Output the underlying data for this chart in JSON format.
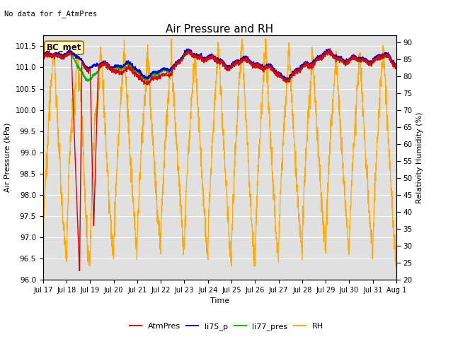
{
  "title": "Air Pressure and RH",
  "subtitle": "No data for f_AtmPres",
  "ylabel_left": "Air Pressure (kPa)",
  "ylabel_right": "Relativity Humidity (%)",
  "xlabel": "Time",
  "annotation": "BC_met",
  "ylim_left": [
    96.0,
    101.75
  ],
  "ylim_right": [
    20,
    92
  ],
  "yticks_left": [
    96.0,
    96.5,
    97.0,
    97.5,
    98.0,
    98.5,
    99.0,
    99.5,
    100.0,
    100.5,
    101.0,
    101.5
  ],
  "yticks_right": [
    20,
    25,
    30,
    35,
    40,
    45,
    50,
    55,
    60,
    65,
    70,
    75,
    80,
    85,
    90
  ],
  "colors": {
    "AtmPres": "#dd0000",
    "li75_p": "#0000cc",
    "li77_pres": "#00bb00",
    "RH": "#ffaa00",
    "bg": "#e0e0e0"
  },
  "date_labels": [
    "Jul 17",
    "Jul 18",
    "Jul 19",
    "Jul 20",
    "Jul 21",
    "Jul 22",
    "Jul 23",
    "Jul 24",
    "Jul 25",
    "Jul 26",
    "Jul 27",
    "Jul 28",
    "Jul 29",
    "Jul 30",
    "Jul 31",
    "Aug 1"
  ],
  "seed": 42
}
